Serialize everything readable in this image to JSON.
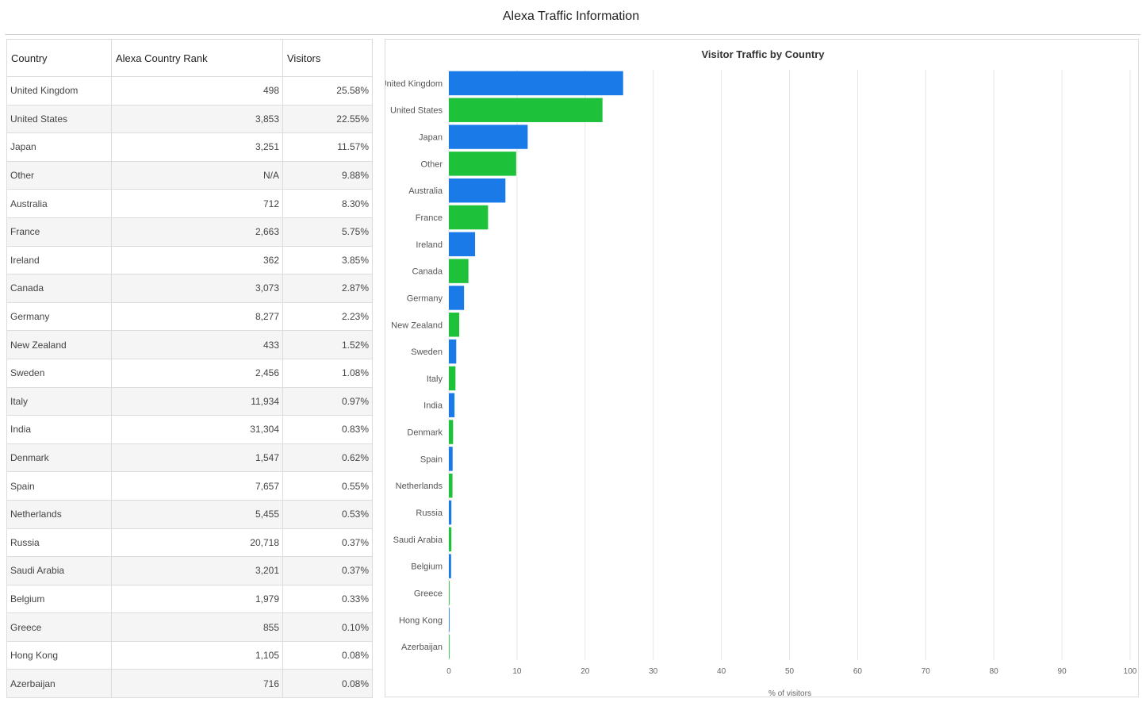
{
  "page": {
    "title": "Alexa Traffic Information"
  },
  "table": {
    "headers": [
      "Country",
      "Alexa Country Rank",
      "Visitors"
    ],
    "rows": [
      [
        "United Kingdom",
        "498",
        "25.58%"
      ],
      [
        "United States",
        "3,853",
        "22.55%"
      ],
      [
        "Japan",
        "3,251",
        "11.57%"
      ],
      [
        "Other",
        "N/A",
        "9.88%"
      ],
      [
        "Australia",
        "712",
        "8.30%"
      ],
      [
        "France",
        "2,663",
        "5.75%"
      ],
      [
        "Ireland",
        "362",
        "3.85%"
      ],
      [
        "Canada",
        "3,073",
        "2.87%"
      ],
      [
        "Germany",
        "8,277",
        "2.23%"
      ],
      [
        "New Zealand",
        "433",
        "1.52%"
      ],
      [
        "Sweden",
        "2,456",
        "1.08%"
      ],
      [
        "Italy",
        "11,934",
        "0.97%"
      ],
      [
        "India",
        "31,304",
        "0.83%"
      ],
      [
        "Denmark",
        "1,547",
        "0.62%"
      ],
      [
        "Spain",
        "7,657",
        "0.55%"
      ],
      [
        "Netherlands",
        "5,455",
        "0.53%"
      ],
      [
        "Russia",
        "20,718",
        "0.37%"
      ],
      [
        "Saudi Arabia",
        "3,201",
        "0.37%"
      ],
      [
        "Belgium",
        "1,979",
        "0.33%"
      ],
      [
        "Greece",
        "855",
        "0.10%"
      ],
      [
        "Hong Kong",
        "1,105",
        "0.08%"
      ],
      [
        "Azerbaijan",
        "716",
        "0.08%"
      ]
    ]
  },
  "chart_data": {
    "type": "bar",
    "orientation": "horizontal",
    "title": "Visitor Traffic by Country",
    "xlabel": "% of visitors",
    "ylabel": "",
    "xlim": [
      0,
      100
    ],
    "xticks": [
      0,
      10,
      20,
      30,
      40,
      50,
      60,
      70,
      80,
      90,
      100
    ],
    "grid": true,
    "colors": [
      "#1a7ae8",
      "#1dc23a"
    ],
    "categories": [
      "United Kingdom",
      "United States",
      "Japan",
      "Other",
      "Australia",
      "France",
      "Ireland",
      "Canada",
      "Germany",
      "New Zealand",
      "Sweden",
      "Italy",
      "India",
      "Denmark",
      "Spain",
      "Netherlands",
      "Russia",
      "Saudi Arabia",
      "Belgium",
      "Greece",
      "Hong Kong",
      "Azerbaijan"
    ],
    "values": [
      25.58,
      22.55,
      11.57,
      9.88,
      8.3,
      5.75,
      3.85,
      2.87,
      2.23,
      1.52,
      1.08,
      0.97,
      0.83,
      0.62,
      0.55,
      0.53,
      0.37,
      0.37,
      0.33,
      0.1,
      0.08,
      0.08
    ]
  }
}
